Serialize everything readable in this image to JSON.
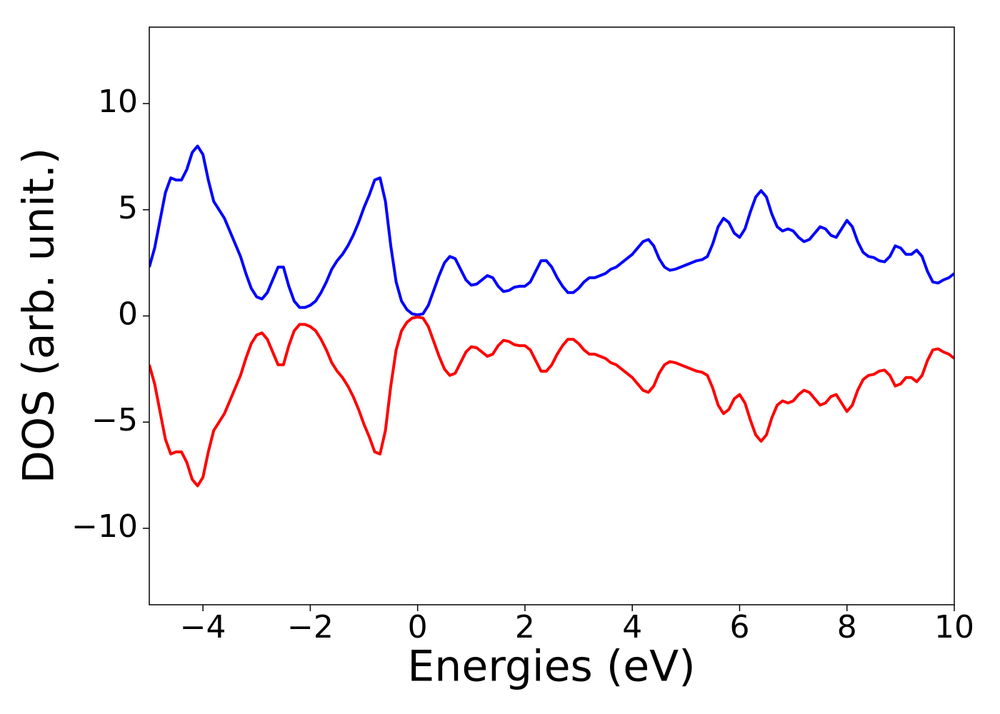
{
  "chart_data": {
    "type": "line",
    "xlabel": "Energies (eV)",
    "ylabel": "DOS (arb. unit.)",
    "x": [
      -5,
      -4.9,
      -4.8,
      -4.7,
      -4.6,
      -4.5,
      -4.4,
      -4.3,
      -4.2,
      -4.1,
      -4,
      -3.9,
      -3.8,
      -3.7,
      -3.6,
      -3.5,
      -3.4,
      -3.3,
      -3.2,
      -3.1,
      -3,
      -2.9,
      -2.8,
      -2.7,
      -2.6,
      -2.5,
      -2.4,
      -2.3,
      -2.2,
      -2.1,
      -2,
      -1.9,
      -1.8,
      -1.7,
      -1.6,
      -1.5,
      -1.4,
      -1.3,
      -1.2,
      -1.1,
      -1,
      -0.9,
      -0.8,
      -0.7,
      -0.6,
      -0.5,
      -0.4,
      -0.3,
      -0.2,
      -0.1,
      0,
      0.1,
      0.2,
      0.3,
      0.4,
      0.5,
      0.6,
      0.7,
      0.8,
      0.9,
      1,
      1.1,
      1.2,
      1.3,
      1.4,
      1.5,
      1.6,
      1.7,
      1.8,
      1.9,
      2,
      2.1,
      2.2,
      2.3,
      2.4,
      2.5,
      2.6,
      2.7,
      2.8,
      2.9,
      3,
      3.1,
      3.2,
      3.3,
      3.4,
      3.5,
      3.6,
      3.7,
      3.8,
      3.9,
      4,
      4.1,
      4.2,
      4.3,
      4.4,
      4.5,
      4.6,
      4.7,
      4.8,
      4.9,
      5,
      5.1,
      5.2,
      5.3,
      5.4,
      5.5,
      5.6,
      5.7,
      5.8,
      5.9,
      6,
      6.1,
      6.2,
      6.3,
      6.4,
      6.5,
      6.6,
      6.7,
      6.8,
      6.9,
      7,
      7.1,
      7.2,
      7.3,
      7.4,
      7.5,
      7.6,
      7.7,
      7.8,
      7.9,
      8,
      8.1,
      8.2,
      8.3,
      8.4,
      8.5,
      8.6,
      8.7,
      8.8,
      8.9,
      9,
      9.1,
      9.2,
      9.3,
      9.4,
      9.5,
      9.6,
      9.7,
      9.8,
      9.9,
      10
    ],
    "series": [
      {
        "color": "#0000ff",
        "values": [
          2.3,
          3.2,
          4.5,
          5.8,
          6.5,
          6.4,
          6.4,
          6.9,
          7.7,
          8.0,
          7.6,
          6.4,
          5.4,
          5.0,
          4.6,
          4.0,
          3.4,
          2.8,
          2.0,
          1.3,
          0.9,
          0.8,
          1.1,
          1.7,
          2.3,
          2.3,
          1.4,
          0.7,
          0.4,
          0.4,
          0.5,
          0.7,
          1.1,
          1.6,
          2.2,
          2.6,
          2.9,
          3.3,
          3.8,
          4.4,
          5.1,
          5.7,
          6.4,
          6.5,
          5.4,
          3.3,
          1.6,
          0.7,
          0.3,
          0.1,
          0.05,
          0.1,
          0.5,
          1.2,
          1.9,
          2.5,
          2.8,
          2.7,
          2.2,
          1.7,
          1.45,
          1.5,
          1.7,
          1.9,
          1.8,
          1.4,
          1.15,
          1.2,
          1.35,
          1.4,
          1.4,
          1.6,
          2.1,
          2.6,
          2.6,
          2.3,
          1.8,
          1.4,
          1.1,
          1.1,
          1.3,
          1.6,
          1.8,
          1.8,
          1.9,
          2.0,
          2.2,
          2.3,
          2.5,
          2.7,
          2.9,
          3.2,
          3.5,
          3.6,
          3.3,
          2.7,
          2.3,
          2.15,
          2.2,
          2.3,
          2.4,
          2.5,
          2.6,
          2.65,
          2.8,
          3.4,
          4.2,
          4.6,
          4.4,
          3.9,
          3.7,
          4.1,
          4.9,
          5.6,
          5.9,
          5.6,
          4.8,
          4.2,
          4.0,
          4.1,
          4.0,
          3.7,
          3.5,
          3.6,
          3.9,
          4.2,
          4.1,
          3.8,
          3.7,
          4.1,
          4.5,
          4.2,
          3.5,
          3.0,
          2.8,
          2.75,
          2.6,
          2.55,
          2.8,
          3.3,
          3.2,
          2.9,
          2.9,
          3.1,
          2.8,
          2.1,
          1.6,
          1.55,
          1.7,
          1.8,
          2.0
        ]
      },
      {
        "color": "#ff0000",
        "values": [
          -2.3,
          -3.2,
          -4.5,
          -5.8,
          -6.5,
          -6.4,
          -6.4,
          -6.9,
          -7.7,
          -8.0,
          -7.6,
          -6.4,
          -5.4,
          -5.0,
          -4.6,
          -4.0,
          -3.4,
          -2.8,
          -2.0,
          -1.3,
          -0.9,
          -0.8,
          -1.1,
          -1.7,
          -2.3,
          -2.3,
          -1.4,
          -0.7,
          -0.4,
          -0.4,
          -0.5,
          -0.7,
          -1.1,
          -1.6,
          -2.2,
          -2.6,
          -2.9,
          -3.3,
          -3.8,
          -4.4,
          -5.1,
          -5.7,
          -6.4,
          -6.5,
          -5.4,
          -3.3,
          -1.6,
          -0.7,
          -0.3,
          -0.1,
          -0.05,
          -0.1,
          -0.5,
          -1.2,
          -1.9,
          -2.5,
          -2.8,
          -2.7,
          -2.2,
          -1.7,
          -1.45,
          -1.5,
          -1.7,
          -1.9,
          -1.8,
          -1.4,
          -1.15,
          -1.2,
          -1.35,
          -1.4,
          -1.4,
          -1.6,
          -2.1,
          -2.6,
          -2.6,
          -2.3,
          -1.8,
          -1.4,
          -1.1,
          -1.1,
          -1.3,
          -1.6,
          -1.8,
          -1.8,
          -1.9,
          -2.0,
          -2.2,
          -2.3,
          -2.5,
          -2.7,
          -2.9,
          -3.2,
          -3.5,
          -3.6,
          -3.3,
          -2.7,
          -2.3,
          -2.15,
          -2.2,
          -2.3,
          -2.4,
          -2.5,
          -2.6,
          -2.65,
          -2.8,
          -3.4,
          -4.2,
          -4.6,
          -4.4,
          -3.9,
          -3.7,
          -4.1,
          -4.9,
          -5.6,
          -5.9,
          -5.6,
          -4.8,
          -4.2,
          -4.0,
          -4.1,
          -4.0,
          -3.7,
          -3.5,
          -3.6,
          -3.9,
          -4.2,
          -4.1,
          -3.8,
          -3.7,
          -4.1,
          -4.5,
          -4.2,
          -3.5,
          -3.0,
          -2.8,
          -2.75,
          -2.6,
          -2.55,
          -2.8,
          -3.3,
          -3.2,
          -2.9,
          -2.9,
          -3.1,
          -2.8,
          -2.1,
          -1.6,
          -1.55,
          -1.7,
          -1.8,
          -2.0
        ]
      }
    ],
    "xlim": [
      -5,
      10
    ],
    "xticks": [
      {
        "value": -4,
        "label": "−4"
      },
      {
        "value": -2,
        "label": "−2"
      },
      0,
      2,
      4,
      6,
      8,
      10
    ],
    "ylim": [
      -13.6,
      13.6
    ],
    "yticks": [
      {
        "value": -10,
        "label": "−10"
      },
      {
        "value": -5,
        "label": "−5"
      },
      0,
      5,
      10
    ],
    "grid": false
  }
}
